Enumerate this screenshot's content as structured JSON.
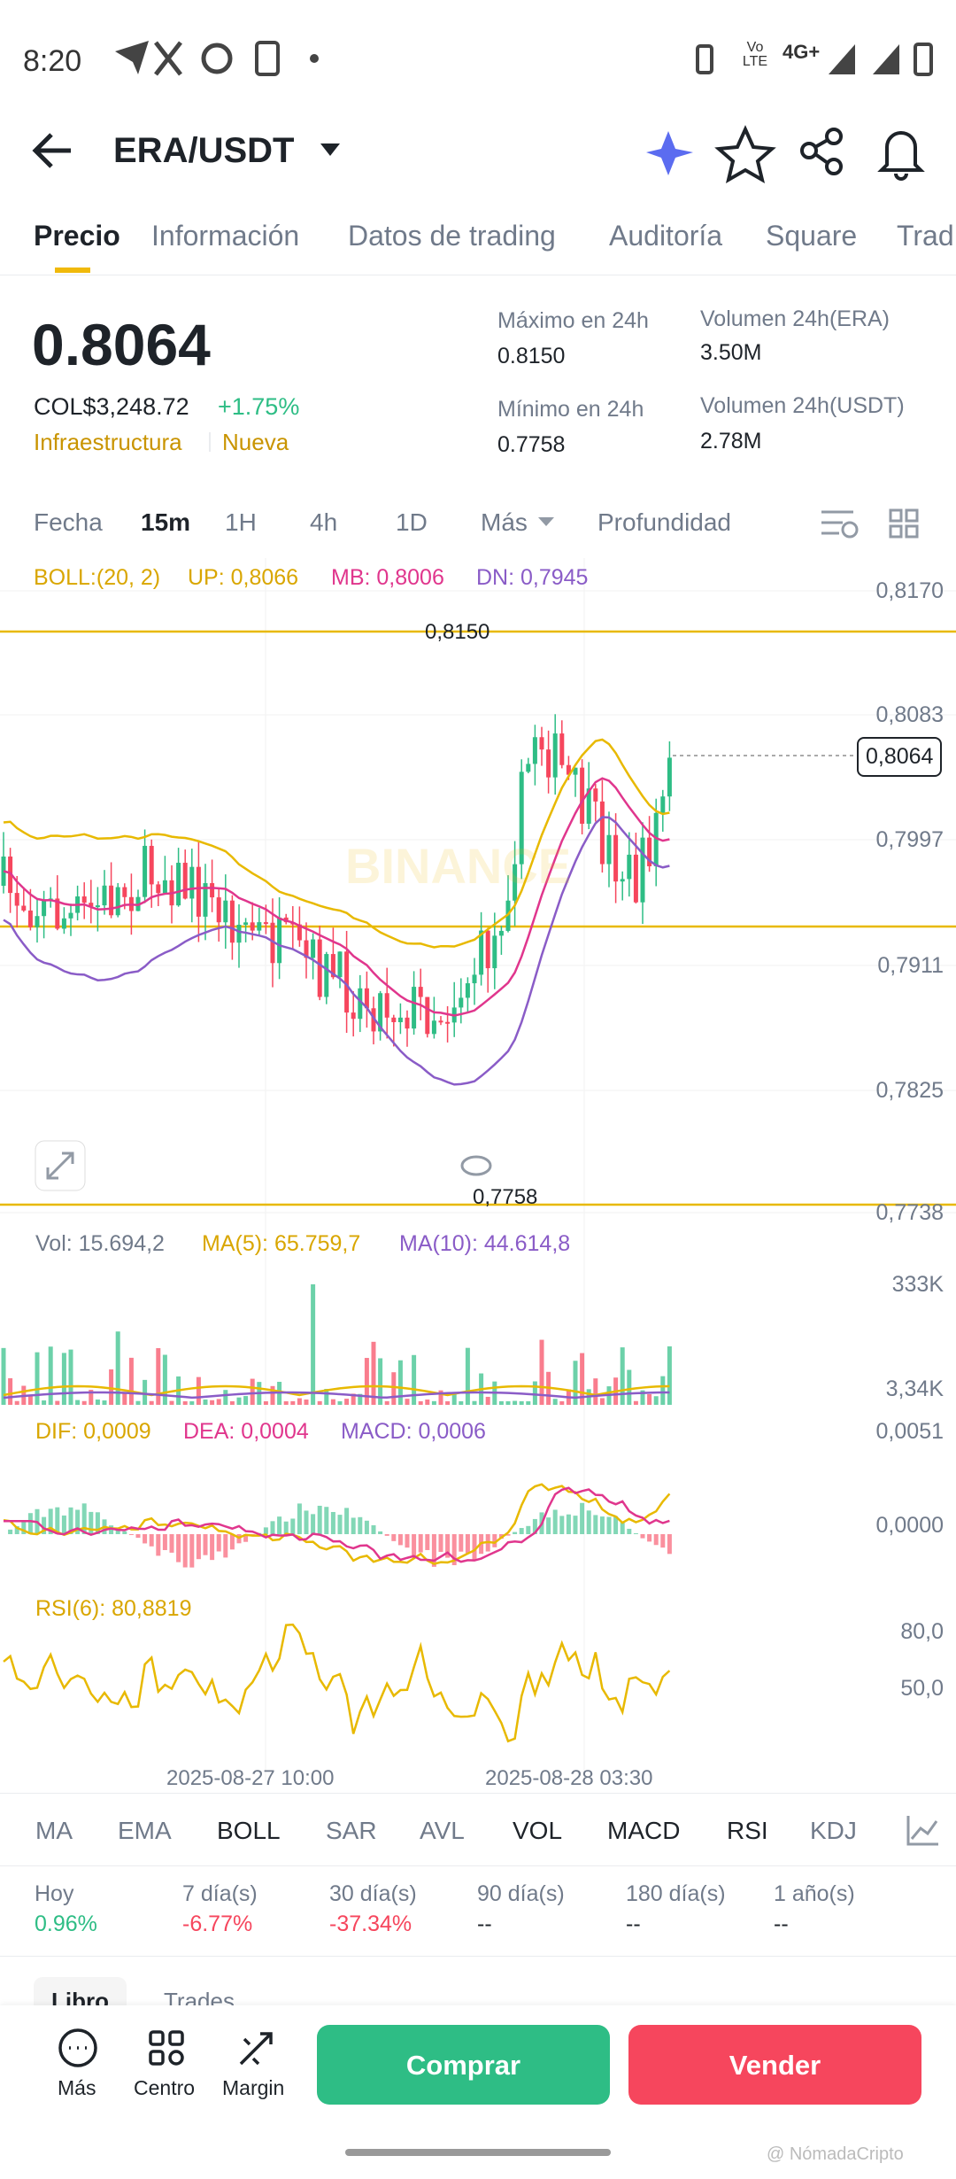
{
  "status": {
    "time": "8:20",
    "network": "4G+",
    "volte": "Vo LTE"
  },
  "header": {
    "pair": "ERA/USDT"
  },
  "tabs": [
    "Precio",
    "Información",
    "Datos de trading",
    "Auditoría",
    "Square",
    "Trad"
  ],
  "price": {
    "last": "0.8064",
    "fiat": "COL$3,248.72",
    "change": "+1.75%",
    "tags": [
      "Infraestructura",
      "Nueva"
    ]
  },
  "stats": [
    {
      "label": "Máximo en 24h",
      "value": "0.8150"
    },
    {
      "label": "Volumen 24h(ERA)",
      "value": "3.50M"
    },
    {
      "label": "Mínimo en 24h",
      "value": "0.7758"
    },
    {
      "label": "Volumen 24h(USDT)",
      "value": "2.78M"
    }
  ],
  "intervals": [
    "Fecha",
    "15m",
    "1H",
    "4h",
    "1D",
    "Más",
    "Profundidad"
  ],
  "chart": {
    "boll": "BOLL:(20, 2)",
    "up": "UP: 0,8066",
    "mb": "MB: 0,8006",
    "dn": "DN: 0,7945",
    "price_axis": [
      "0,8170",
      "0,8083",
      "0,7997",
      "0,7911",
      "0,7825",
      "0,7738"
    ],
    "current": "0,8064",
    "high": "0,8150",
    "low": "0,7758",
    "watermark": "BINANCE"
  },
  "volume": {
    "vol": "Vol: 15.694,2",
    "ma5": "MA(5): 65.759,7",
    "ma10": "MA(10): 44.614,8",
    "axis": [
      "333K",
      "3,34K"
    ]
  },
  "macd": {
    "dif": "DIF: 0,0009",
    "dea": "DEA: 0,0004",
    "macd": "MACD: 0,0006",
    "axis": [
      "0,0051",
      "0,0000"
    ]
  },
  "rsi": {
    "label": "RSI(6): 80,8819",
    "axis": [
      "80,0",
      "50,0"
    ]
  },
  "time_axis": [
    "2025-08-27 10:00",
    "2025-08-28 03:30"
  ],
  "indicators": [
    "MA",
    "EMA",
    "BOLL",
    "SAR",
    "AVL",
    "VOL",
    "MACD",
    "RSI",
    "KDJ"
  ],
  "performance": [
    {
      "period": "Hoy",
      "change": "0.96%"
    },
    {
      "period": "7 día(s)",
      "change": "-6.77%"
    },
    {
      "period": "30 día(s)",
      "change": "-37.34%"
    },
    {
      "period": "90 día(s)",
      "change": "--"
    },
    {
      "period": "180 día(s)",
      "change": "--"
    },
    {
      "period": "1 año(s)",
      "change": "--"
    }
  ],
  "book_tabs": [
    "Libro",
    "Trades"
  ],
  "bottom": {
    "actions": [
      "Más",
      "Centro",
      "Margin"
    ],
    "buy": "Comprar",
    "sell": "Vender"
  },
  "watermark": "@ NómadaCripto"
}
